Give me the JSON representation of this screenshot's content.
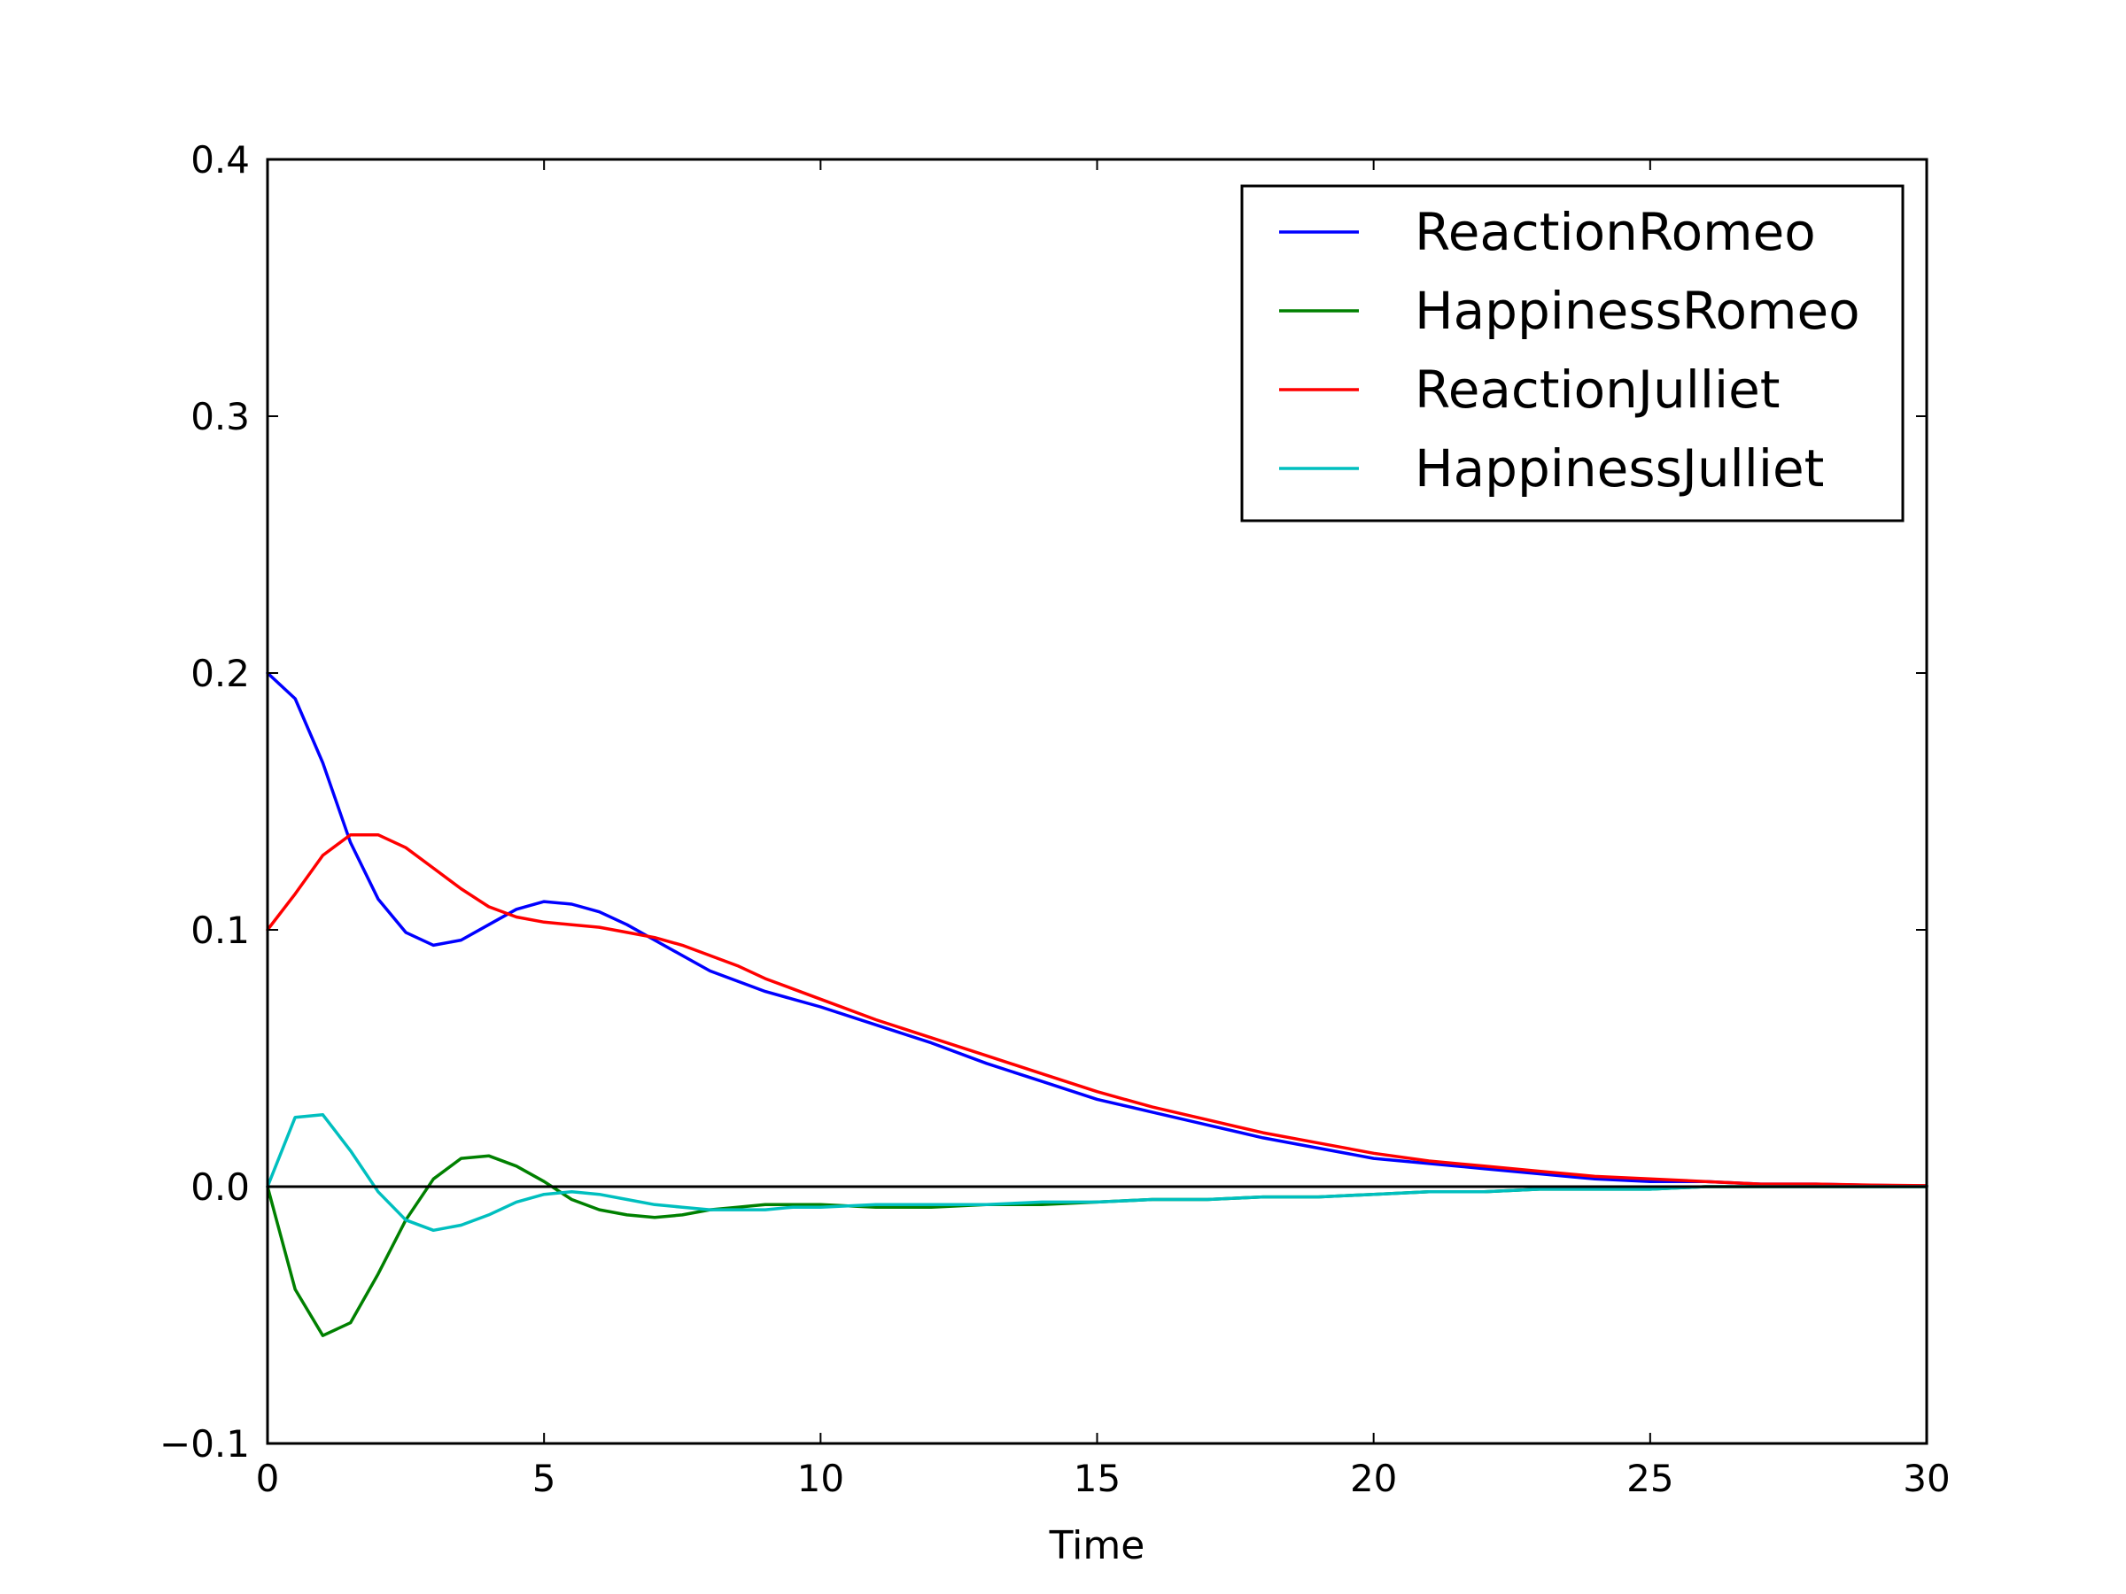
{
  "chart_data": {
    "type": "line",
    "title": "",
    "xlabel": "Time",
    "ylabel": "",
    "xlim": [
      0,
      30
    ],
    "ylim": [
      -0.1,
      0.4
    ],
    "x_ticks": [
      0,
      5,
      10,
      15,
      20,
      25,
      30
    ],
    "x_tick_labels": [
      "0",
      "5",
      "10",
      "15",
      "20",
      "25",
      "30"
    ],
    "y_ticks": [
      -0.1,
      0.0,
      0.1,
      0.2,
      0.3,
      0.4
    ],
    "y_tick_labels": [
      "−0.1",
      "0.0",
      "0.1",
      "0.2",
      "0.3",
      "0.4"
    ],
    "grid": false,
    "legend_position": "top-right",
    "reference_line": {
      "y": 0,
      "color": "#000000"
    },
    "x": [
      0,
      0.5,
      1,
      1.5,
      2,
      2.5,
      3,
      3.5,
      4,
      4.5,
      5,
      5.5,
      6,
      6.5,
      7,
      7.5,
      8,
      8.5,
      9,
      9.5,
      10,
      11,
      12,
      13,
      14,
      15,
      16,
      17,
      18,
      19,
      20,
      21,
      22,
      23,
      24,
      25,
      26,
      27,
      28,
      29,
      30
    ],
    "series": [
      {
        "name": "ReactionRomeo",
        "color": "#0000ff",
        "values": [
          0.2,
          0.19,
          0.165,
          0.134,
          0.112,
          0.099,
          0.094,
          0.096,
          0.102,
          0.108,
          0.111,
          0.11,
          0.107,
          0.102,
          0.096,
          0.09,
          0.084,
          0.08,
          0.076,
          0.073,
          0.07,
          0.063,
          0.056,
          0.048,
          0.041,
          0.034,
          0.029,
          0.024,
          0.019,
          0.015,
          0.011,
          0.009,
          0.007,
          0.005,
          0.003,
          0.002,
          0.002,
          0.001,
          0.001,
          0.0005,
          0.0003
        ]
      },
      {
        "name": "HappinessRomeo",
        "color": "#008000",
        "values": [
          0.0,
          -0.04,
          -0.058,
          -0.053,
          -0.034,
          -0.013,
          0.003,
          0.011,
          0.012,
          0.008,
          0.002,
          -0.005,
          -0.009,
          -0.011,
          -0.012,
          -0.011,
          -0.009,
          -0.008,
          -0.007,
          -0.007,
          -0.007,
          -0.008,
          -0.008,
          -0.007,
          -0.007,
          -0.006,
          -0.005,
          -0.005,
          -0.004,
          -0.004,
          -0.003,
          -0.002,
          -0.002,
          -0.001,
          -0.001,
          -0.001,
          0.0,
          0.0,
          0.0,
          0.0,
          0.0
        ]
      },
      {
        "name": "ReactionJulliet",
        "color": "#ff0000",
        "values": [
          0.1,
          0.114,
          0.129,
          0.137,
          0.137,
          0.132,
          0.124,
          0.116,
          0.109,
          0.105,
          0.103,
          0.102,
          0.101,
          0.099,
          0.097,
          0.094,
          0.09,
          0.086,
          0.081,
          0.077,
          0.073,
          0.065,
          0.058,
          0.051,
          0.044,
          0.037,
          0.031,
          0.026,
          0.021,
          0.017,
          0.013,
          0.01,
          0.008,
          0.006,
          0.004,
          0.003,
          0.002,
          0.001,
          0.001,
          0.0006,
          0.0004
        ]
      },
      {
        "name": "HappinessJulliet",
        "color": "#00bfbf",
        "values": [
          0.0,
          0.027,
          0.028,
          0.014,
          -0.002,
          -0.013,
          -0.017,
          -0.015,
          -0.011,
          -0.006,
          -0.003,
          -0.002,
          -0.003,
          -0.005,
          -0.007,
          -0.008,
          -0.009,
          -0.009,
          -0.009,
          -0.008,
          -0.008,
          -0.007,
          -0.007,
          -0.007,
          -0.006,
          -0.006,
          -0.005,
          -0.005,
          -0.004,
          -0.004,
          -0.003,
          -0.002,
          -0.002,
          -0.001,
          -0.001,
          -0.001,
          0.0,
          0.0,
          0.0,
          0.0,
          0.0
        ]
      }
    ]
  }
}
